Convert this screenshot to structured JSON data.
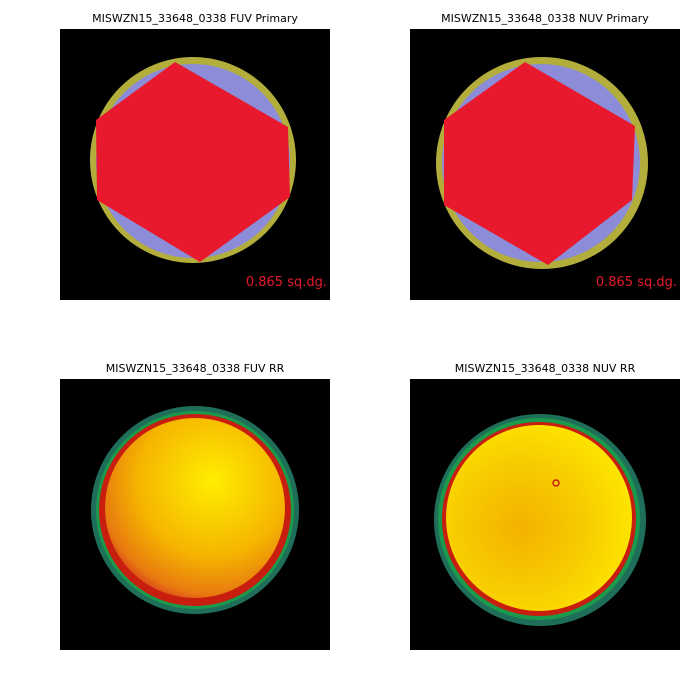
{
  "panels": [
    {
      "title": "MISWZN15_33648_0338 FUV Primary",
      "label": "0.865 sq.dg."
    },
    {
      "title": "MISWZN15_33648_0338 NUV Primary",
      "label": "0.865 sq.dg."
    },
    {
      "title": "MISWZN15_33648_0338 FUV RR"
    },
    {
      "title": "MISWZN15_33648_0338 NUV RR"
    }
  ]
}
